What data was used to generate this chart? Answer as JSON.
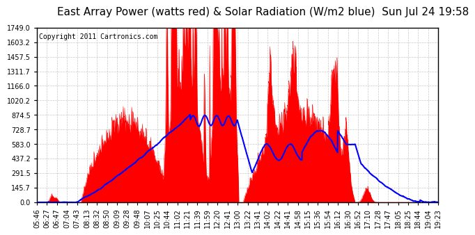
{
  "title": "East Array Power (watts red) & Solar Radiation (W/m2 blue)  Sun Jul 24 19:58",
  "copyright_text": "Copyright 2011 Cartronics.com",
  "background_color": "#ffffff",
  "grid_color": "#c8c8c8",
  "y_min": 0.0,
  "y_max": 1749.0,
  "y_ticks": [
    0.0,
    145.7,
    291.5,
    437.2,
    583.0,
    728.7,
    874.5,
    1020.2,
    1166.0,
    1311.7,
    1457.5,
    1603.2,
    1749.0
  ],
  "x_labels": [
    "05:46",
    "06:27",
    "06:47",
    "07:04",
    "07:43",
    "08:13",
    "08:32",
    "08:50",
    "09:09",
    "09:28",
    "09:48",
    "10:07",
    "10:25",
    "10:44",
    "11:02",
    "11:21",
    "11:39",
    "11:59",
    "12:20",
    "12:41",
    "13:00",
    "13:22",
    "13:41",
    "14:02",
    "14:22",
    "14:41",
    "14:58",
    "15:15",
    "15:36",
    "15:54",
    "16:12",
    "16:30",
    "16:52",
    "17:10",
    "17:28",
    "17:47",
    "18:05",
    "18:25",
    "18:44",
    "19:04",
    "19:23"
  ],
  "red_color": "#ff0000",
  "blue_color": "#0000ff",
  "title_fontsize": 11,
  "tick_fontsize": 7,
  "copyright_fontsize": 7
}
